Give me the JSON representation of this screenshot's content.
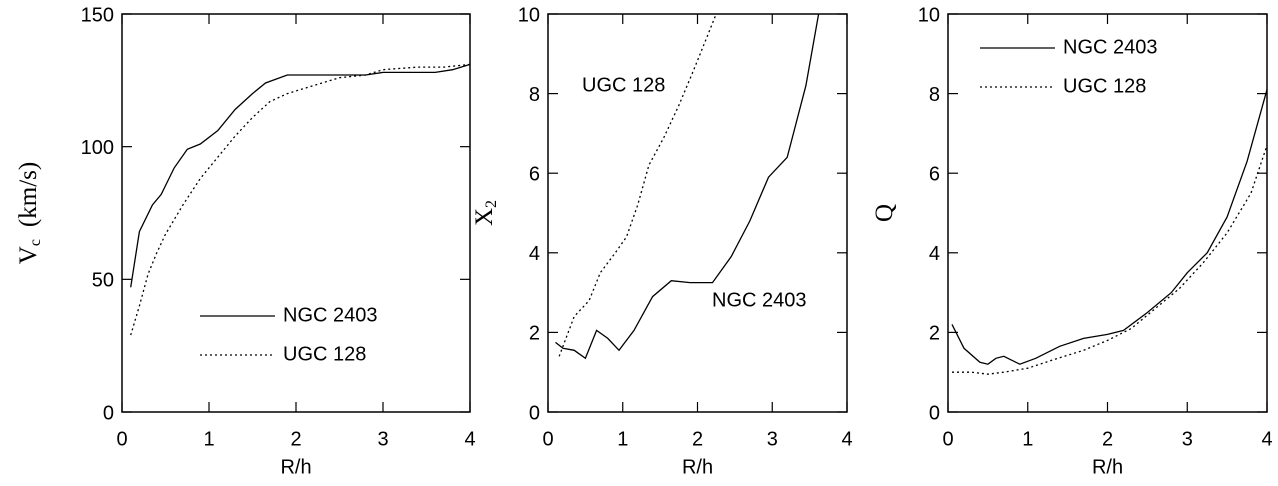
{
  "chart_data": [
    {
      "type": "line",
      "xlabel": "R/h",
      "ylabel": {
        "text": "V",
        "subscript": "c",
        "unit": "(km/s)"
      },
      "xlim": [
        0,
        4
      ],
      "ylim": [
        0,
        150
      ],
      "xticks": [
        0,
        1,
        2,
        3,
        4
      ],
      "yticks": [
        0,
        50,
        100,
        150
      ],
      "legend": "lower right",
      "series": [
        {
          "name": "NGC 2403",
          "color": "#000000",
          "linestyle": "solid",
          "x": [
            0.1,
            0.2,
            0.35,
            0.45,
            0.6,
            0.75,
            0.9,
            1.1,
            1.3,
            1.5,
            1.65,
            1.9,
            2.2,
            2.5,
            2.8,
            3.0,
            3.3,
            3.6,
            3.8,
            4.0
          ],
          "values": [
            47,
            68,
            78,
            82,
            92,
            99,
            101,
            106,
            114,
            120,
            124,
            127,
            127,
            127,
            127,
            128,
            128,
            128,
            129,
            131
          ]
        },
        {
          "name": "UGC 128",
          "color": "#000000",
          "linestyle": "dotted",
          "x": [
            0.1,
            0.2,
            0.3,
            0.4,
            0.5,
            0.7,
            0.9,
            1.1,
            1.3,
            1.5,
            1.7,
            1.9,
            2.2,
            2.5,
            2.8,
            3.0,
            3.4,
            3.7,
            4.0
          ],
          "values": [
            29,
            40,
            52,
            60,
            67,
            78,
            88,
            96,
            104,
            111,
            117,
            120,
            123,
            126,
            127,
            129,
            130,
            130,
            131
          ]
        }
      ]
    },
    {
      "type": "line",
      "xlabel": "R/h",
      "ylabel": {
        "text": "X",
        "subscript": "2"
      },
      "xlim": [
        0,
        4
      ],
      "ylim": [
        0,
        10
      ],
      "xticks": [
        0,
        1,
        2,
        3,
        4
      ],
      "yticks": [
        0,
        2,
        4,
        6,
        8,
        10
      ],
      "annotations": [
        "UGC 128",
        "NGC 2403"
      ],
      "series": [
        {
          "name": "NGC 2403",
          "color": "#000000",
          "linestyle": "solid",
          "x": [
            0.1,
            0.2,
            0.35,
            0.5,
            0.65,
            0.8,
            0.95,
            1.15,
            1.4,
            1.65,
            1.9,
            2.2,
            2.45,
            2.7,
            2.95,
            3.2,
            3.45,
            3.62
          ],
          "values": [
            1.75,
            1.6,
            1.55,
            1.35,
            2.05,
            1.85,
            1.55,
            2.05,
            2.9,
            3.3,
            3.25,
            3.25,
            3.9,
            4.8,
            5.9,
            6.4,
            8.2,
            10
          ]
        },
        {
          "name": "UGC 128",
          "color": "#000000",
          "linestyle": "dotted",
          "x": [
            0.15,
            0.25,
            0.35,
            0.55,
            0.7,
            0.9,
            1.05,
            1.2,
            1.35,
            1.55,
            1.75,
            1.95,
            2.1,
            2.25
          ],
          "values": [
            1.4,
            1.9,
            2.4,
            2.8,
            3.5,
            4.0,
            4.4,
            5.2,
            6.2,
            6.9,
            7.7,
            8.6,
            9.3,
            10
          ]
        }
      ]
    },
    {
      "type": "line",
      "xlabel": "R/h",
      "ylabel": {
        "text": "Q"
      },
      "xlim": [
        0,
        4
      ],
      "ylim": [
        0,
        10
      ],
      "xticks": [
        0,
        1,
        2,
        3,
        4
      ],
      "yticks": [
        0,
        2,
        4,
        6,
        8,
        10
      ],
      "legend": "upper left",
      "series": [
        {
          "name": "NGC 2403",
          "color": "#000000",
          "linestyle": "solid",
          "x": [
            0.05,
            0.2,
            0.4,
            0.5,
            0.6,
            0.7,
            0.9,
            1.1,
            1.4,
            1.7,
            2.0,
            2.2,
            2.5,
            2.8,
            3.0,
            3.25,
            3.5,
            3.75,
            4.0
          ],
          "values": [
            2.2,
            1.6,
            1.25,
            1.2,
            1.35,
            1.4,
            1.2,
            1.35,
            1.65,
            1.85,
            1.95,
            2.05,
            2.5,
            3.0,
            3.5,
            4.0,
            4.9,
            6.3,
            8.1
          ]
        },
        {
          "name": "UGC 128",
          "color": "#000000",
          "linestyle": "dotted",
          "x": [
            0.05,
            0.3,
            0.5,
            0.7,
            1.0,
            1.3,
            1.7,
            2.0,
            2.3,
            2.6,
            2.9,
            3.2,
            3.5,
            3.8,
            4.0
          ],
          "values": [
            1.0,
            1.0,
            0.95,
            1.0,
            1.1,
            1.3,
            1.55,
            1.8,
            2.1,
            2.6,
            3.1,
            3.75,
            4.5,
            5.5,
            6.7
          ]
        }
      ]
    }
  ]
}
